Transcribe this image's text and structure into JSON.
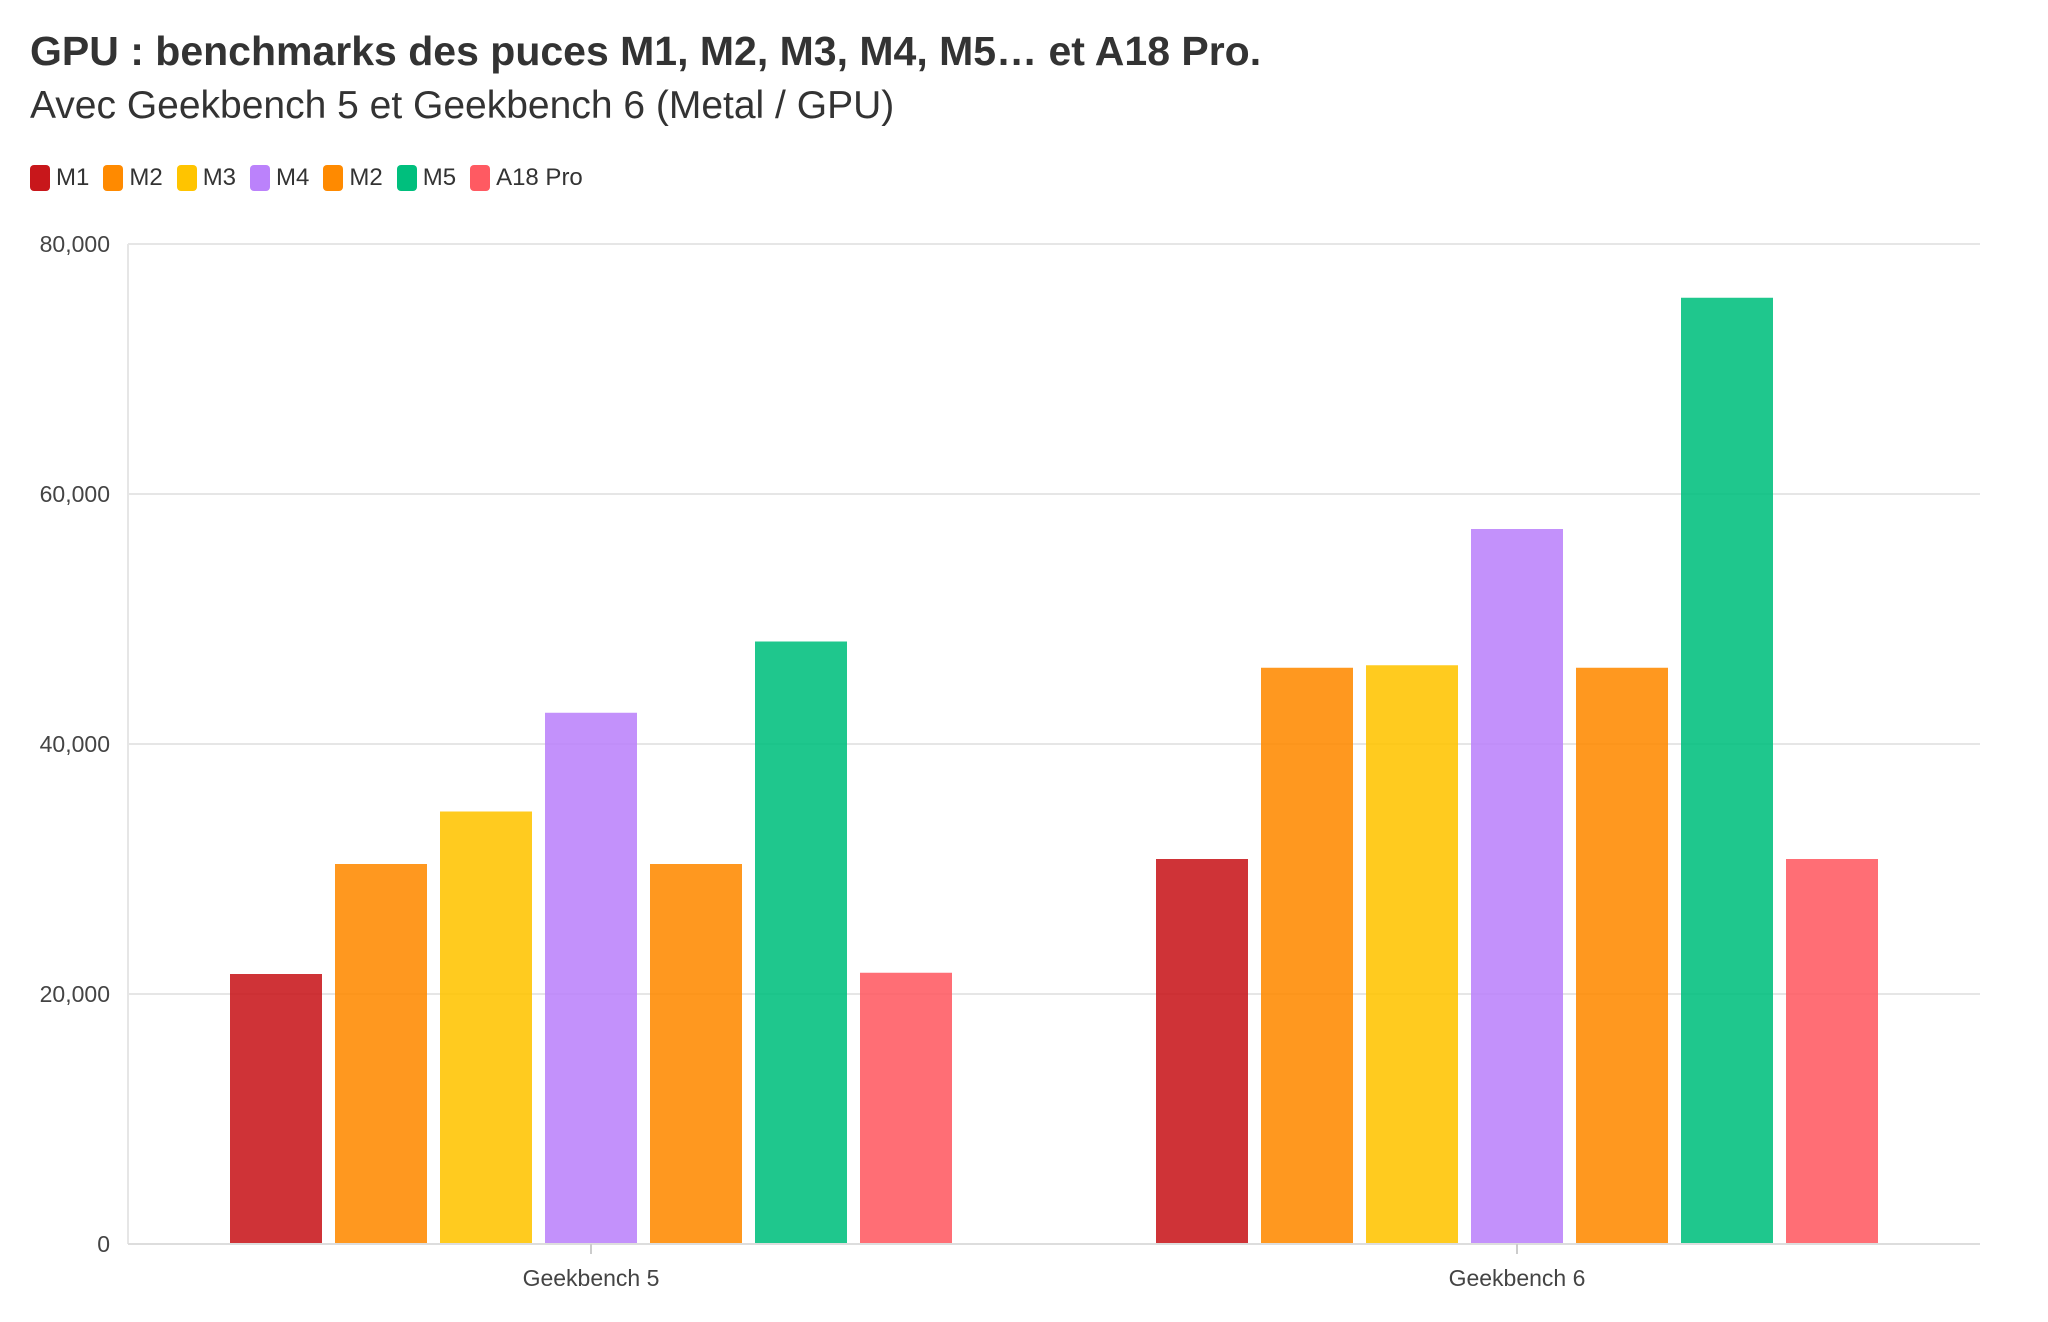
{
  "title": "GPU : benchmarks des puces M1, M2, M3, M4, M5… et A18 Pro.",
  "subtitle": "Avec Geekbench 5 et Geekbench 6 (Metal / GPU)",
  "chart_data": {
    "type": "bar",
    "title": "GPU : benchmarks des puces M1, M2, M3, M4, M5… et A18 Pro.",
    "subtitle": "Avec Geekbench 5 et Geekbench 6 (Metal / GPU)",
    "categories": [
      "Geekbench 5",
      "Geekbench 6"
    ],
    "series": [
      {
        "name": "M1",
        "color": "#c8171b",
        "values": [
          21600,
          30800
        ]
      },
      {
        "name": "M2",
        "color": "#ff8a00",
        "values": [
          30400,
          46100
        ]
      },
      {
        "name": "M3",
        "color": "#ffc400",
        "values": [
          34600,
          46300
        ]
      },
      {
        "name": "M4",
        "color": "#bb82fb",
        "values": [
          42500,
          57200
        ]
      },
      {
        "name": "M2",
        "color": "#ff8a00",
        "values": [
          30400,
          46100
        ]
      },
      {
        "name": "M5",
        "color": "#00bf7d",
        "values": [
          48200,
          75700
        ]
      },
      {
        "name": "A18 Pro",
        "color": "#ff5a62",
        "values": [
          21700,
          30800
        ]
      }
    ],
    "xlabel": "",
    "ylabel": "",
    "ylim": [
      0,
      80000
    ],
    "yticks": [
      "0",
      "20,000",
      "40,000",
      "60,000",
      "80,000"
    ],
    "ytick_values": [
      0,
      20000,
      40000,
      60000,
      80000
    ],
    "grid": true,
    "legend": "top-left"
  }
}
